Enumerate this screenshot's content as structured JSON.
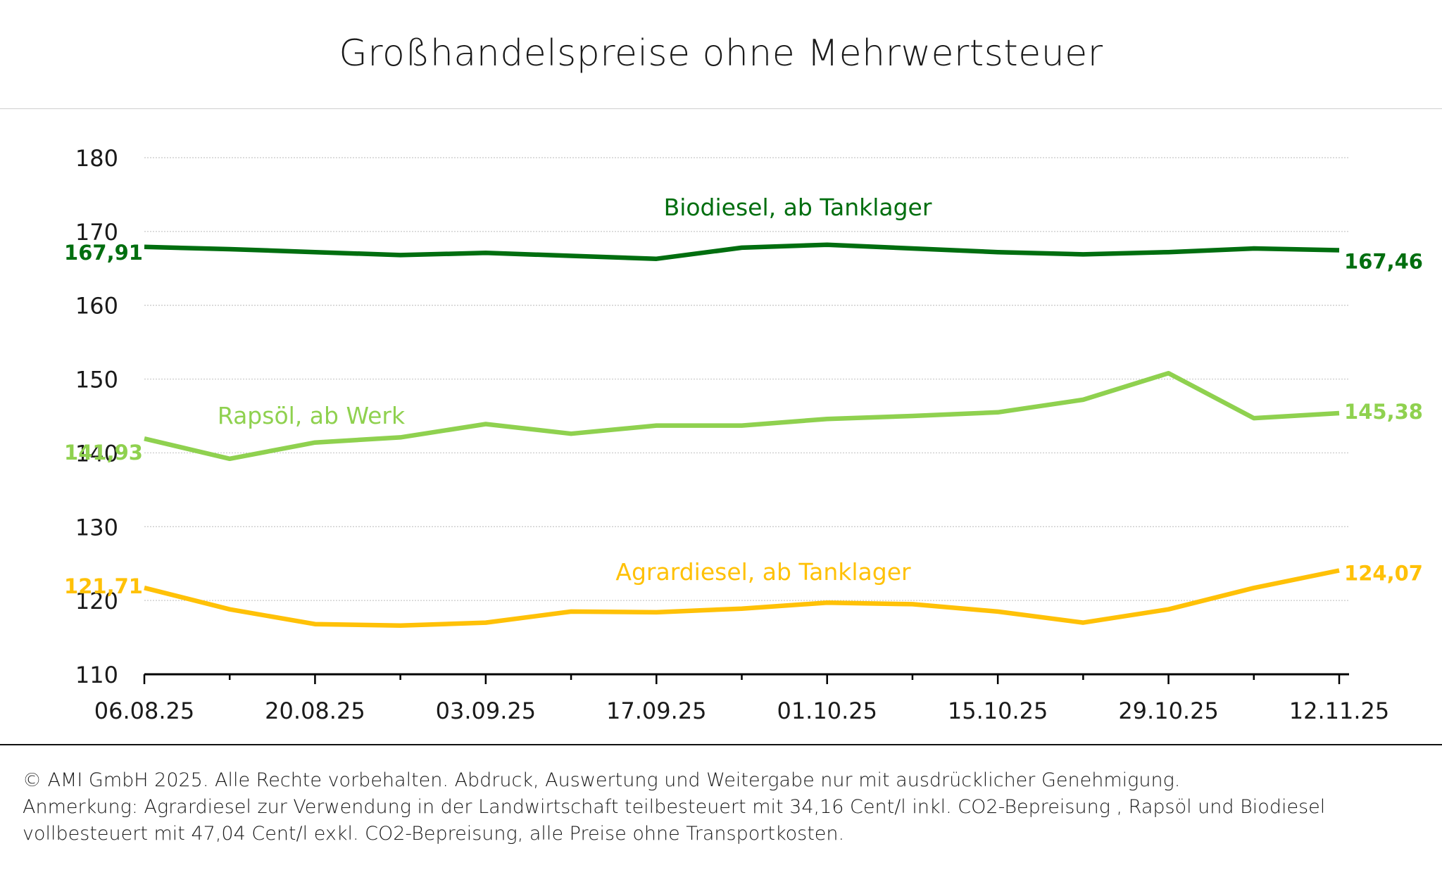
{
  "chart_data": {
    "type": "line",
    "title": "Großhandelspreise ohne Mehrwertsteuer",
    "ylim": [
      110,
      180
    ],
    "yticks": [
      110,
      120,
      130,
      140,
      150,
      160,
      170,
      180
    ],
    "x": [
      "06.08.25",
      "13.08.25",
      "20.08.25",
      "27.08.25",
      "03.09.25",
      "10.09.25",
      "17.09.25",
      "24.09.25",
      "01.10.25",
      "08.10.25",
      "15.10.25",
      "22.10.25",
      "29.10.25",
      "05.11.25",
      "12.11.25"
    ],
    "xtick_labels": [
      "06.08.25",
      "20.08.25",
      "03.09.25",
      "17.09.25",
      "01.10.25",
      "15.10.25",
      "29.10.25",
      "12.11.25"
    ],
    "series": [
      {
        "name": "Biodiesel, ab Tanklager",
        "color": "#006e0f",
        "values": [
          167.91,
          167.6,
          167.2,
          166.8,
          167.1,
          166.7,
          166.3,
          167.8,
          168.2,
          167.7,
          167.2,
          166.9,
          167.2,
          167.7,
          167.46
        ],
        "start_label": "167,91",
        "end_label": "167,46"
      },
      {
        "name": "Rapsöl, ab Werk",
        "color": "#8fd14f",
        "values": [
          141.93,
          139.2,
          141.4,
          142.1,
          143.9,
          142.6,
          143.7,
          143.7,
          144.6,
          145.0,
          145.5,
          147.2,
          150.8,
          144.7,
          145.38
        ],
        "start_label": "141,93",
        "end_label": "145,38"
      },
      {
        "name": "Agrardiesel, ab Tanklager",
        "color": "#ffc107",
        "values": [
          121.71,
          118.8,
          116.8,
          116.6,
          117.0,
          118.5,
          118.4,
          118.9,
          119.7,
          119.5,
          118.5,
          117.0,
          118.8,
          121.7,
          124.07
        ],
        "start_label": "121,71",
        "end_label": "124,07"
      }
    ]
  },
  "footer": {
    "copyright": "© AMI GmbH 2025.  Alle Rechte vorbehalten.  Abdruck, Auswertung und Weitergabe nur mit ausdrücklicher Genehmigung.",
    "note_line1": "Anmerkung: Agrardiesel zur Verwendung in der Landwirtschaft teilbesteuert mit 34,16 Cent/l inkl. CO2-Bepreisung , Rapsöl und Biodiesel",
    "note_line2": "vollbesteuert mit 47,04 Cent/l exkl. CO2-Bepreisung, alle Preise ohne Transportkosten."
  }
}
